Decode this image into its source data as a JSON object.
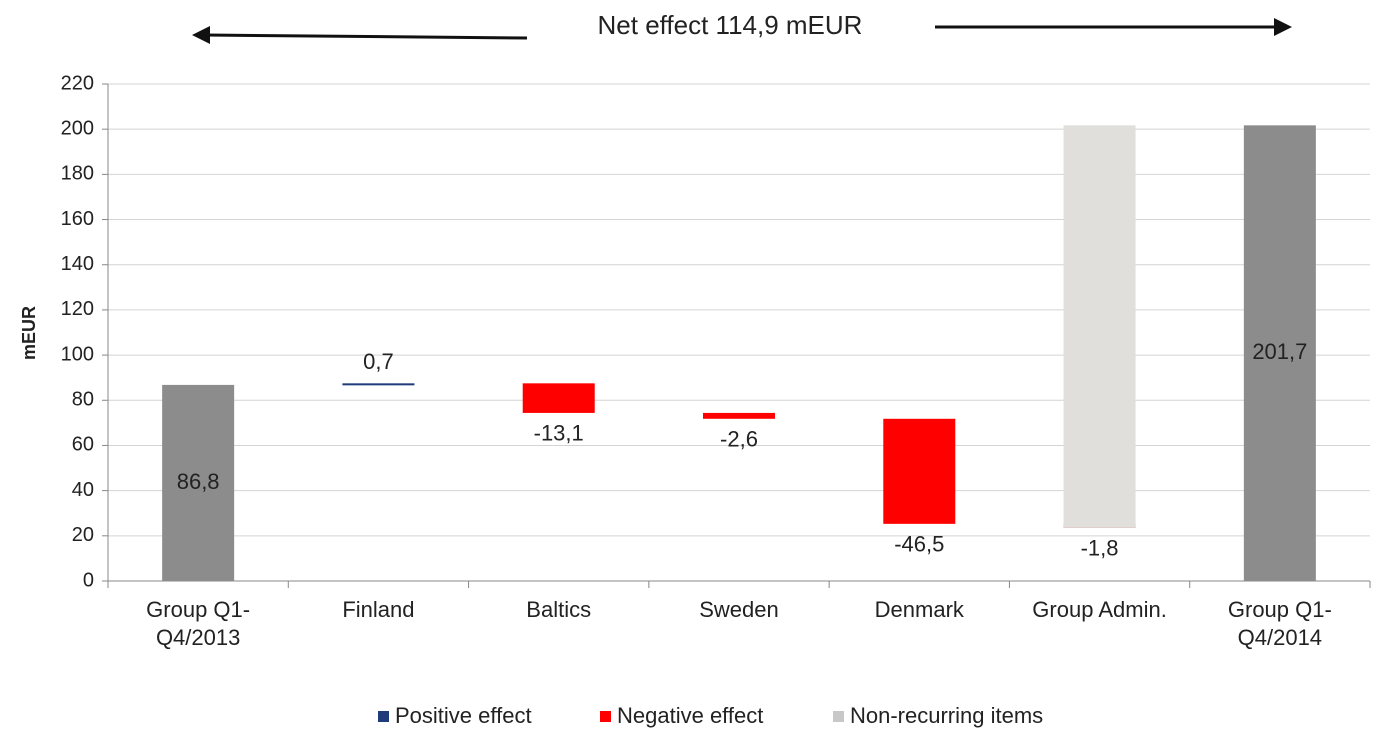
{
  "chart_data": {
    "type": "waterfall",
    "title": "Net effect 114,9 mEUR",
    "y_label": "mEUR",
    "categories": [
      "Group Q1-Q4/2013",
      "Finland",
      "Baltics",
      "Sweden",
      "Denmark",
      "Group Admin.",
      "Group Q1-Q4/2014"
    ],
    "totals": {
      "color": "#8c8c8c",
      "values": [
        86.8,
        null,
        null,
        null,
        null,
        null,
        201.7
      ],
      "value_labels": [
        "86,8",
        null,
        null,
        null,
        null,
        null,
        "201,7"
      ]
    },
    "series": [
      {
        "name": "Positive effect",
        "color": "#1f3b7a",
        "values": [
          null,
          0.7,
          null,
          null,
          null,
          null,
          null
        ],
        "value_labels": [
          null,
          "0,7",
          null,
          null,
          null,
          null,
          null
        ]
      },
      {
        "name": "Negative effect",
        "color": "#ff0000",
        "values": [
          null,
          null,
          -13.1,
          -2.6,
          -46.5,
          -1.8,
          null
        ],
        "value_labels": [
          null,
          null,
          "-13,1",
          "-2,6",
          "-46,5",
          "-1,8",
          null
        ]
      },
      {
        "name": "Non-recurring items",
        "color": "#e0dfdc",
        "values": [
          null,
          null,
          null,
          null,
          null,
          178.2,
          null
        ]
      }
    ],
    "ylim": [
      0,
      220
    ],
    "yticks": [
      0,
      20,
      40,
      60,
      80,
      100,
      120,
      140,
      160,
      180,
      200,
      220
    ],
    "grid": true,
    "legend": "bottom"
  }
}
